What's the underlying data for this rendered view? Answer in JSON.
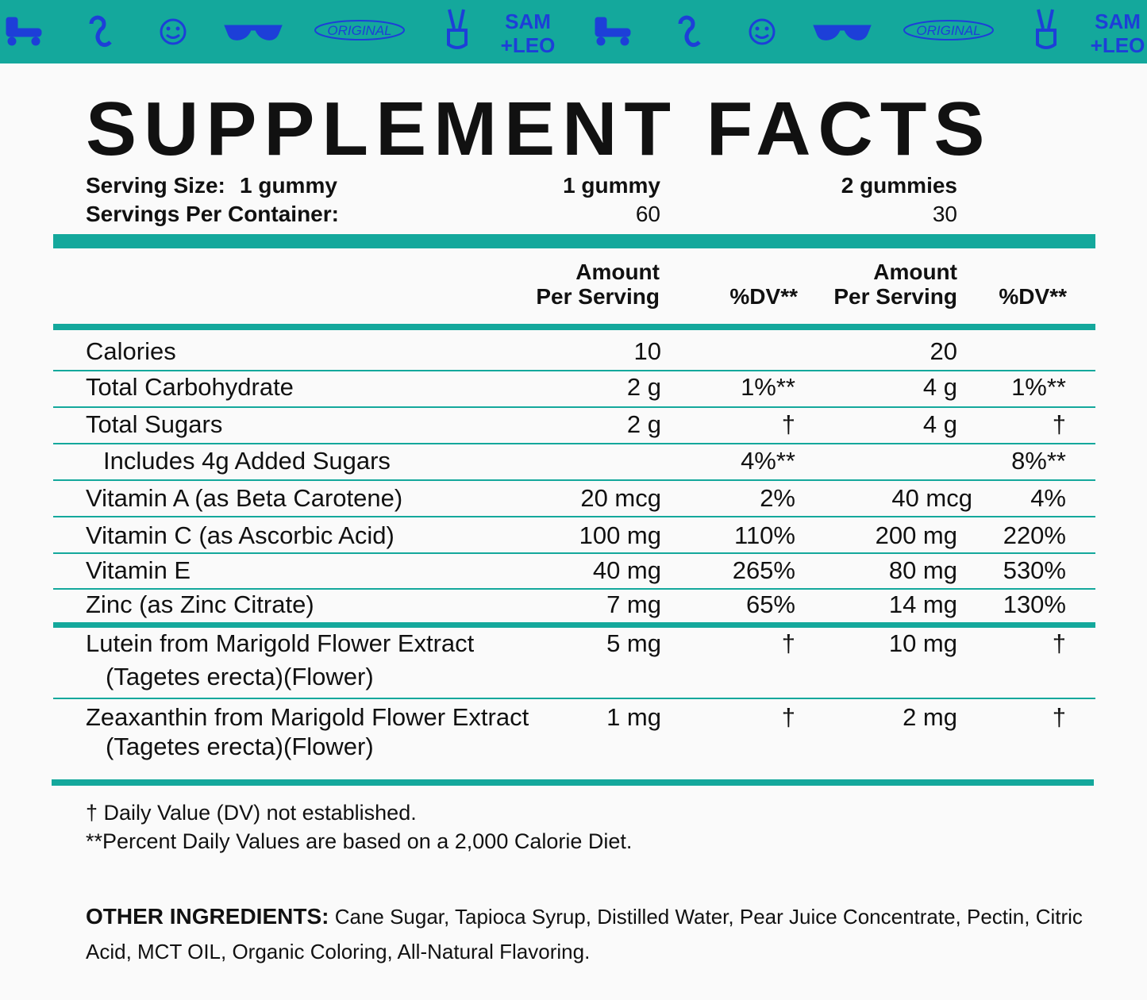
{
  "banner": {
    "original": "ORIGINAL",
    "brand": [
      "SAM",
      "+LEO"
    ]
  },
  "title": "SUPPLEMENT FACTS",
  "serving": {
    "size_label": "Serving Size:",
    "size_value": "1 gummy",
    "per_container_label": "Servings Per Container:",
    "columns": [
      [
        "1 gummy",
        "60"
      ],
      [
        "2 gummies",
        "30"
      ]
    ]
  },
  "table": {
    "headers": [
      [
        "Amount",
        "Per Serving"
      ],
      "%DV**",
      [
        "Amount",
        "Per Serving"
      ],
      "%DV**"
    ],
    "rows": [
      {
        "name": [
          "Calories"
        ],
        "amount1": "10",
        "dv1": null,
        "amount2": "20",
        "dv2": null
      },
      {
        "name": [
          "Total Carbohydrate"
        ],
        "amount1": "2 g",
        "dv1": "1%**",
        "amount2": "4 g",
        "dv2": "1%**"
      },
      {
        "name": [
          "Total Sugars"
        ],
        "amount1": "2 g",
        "dv1": "†",
        "amount2": "4 g",
        "dv2": "†"
      },
      {
        "name": [
          "Includes 4g Added Sugars"
        ],
        "amount1": null,
        "dv1": "4%**",
        "amount2": null,
        "dv2": "8%**"
      },
      {
        "name": [
          "Vitamin A (as Beta Carotene)"
        ],
        "amount1": "20 mcg",
        "dv1": "2%",
        "amount2": "40 mcg",
        "dv2": "4%"
      },
      {
        "name": [
          "Vitamin C (as Ascorbic Acid)"
        ],
        "amount1": "100 mg",
        "dv1": "110%",
        "amount2": "200 mg",
        "dv2": "220%"
      },
      {
        "name": [
          "Vitamin E"
        ],
        "amount1": "40 mg",
        "dv1": "265%",
        "amount2": "80 mg",
        "dv2": "530%"
      },
      {
        "name": [
          "Zinc (as Zinc Citrate)"
        ],
        "amount1": "7 mg",
        "dv1": "65%",
        "amount2": "14 mg",
        "dv2": "130%"
      },
      {
        "name": [
          "Lutein from Marigold Flower Extract",
          "(Tagetes erecta)(Flower)"
        ],
        "amount1": "5 mg",
        "dv1": "†",
        "amount2": "10 mg",
        "dv2": "†"
      },
      {
        "name": [
          "Zeaxanthin from Marigold Flower Extract",
          "(Tagetes erecta)(Flower)"
        ],
        "amount1": "1 mg",
        "dv1": "†",
        "amount2": "2 mg",
        "dv2": "†"
      }
    ]
  },
  "footnotes": [
    "† Daily Value (DV) not established.",
    "**Percent Daily Values are based on a 2,000 Calorie Diet."
  ],
  "other_ingredients": {
    "label": "OTHER INGREDIENTS:",
    "text": "Cane Sugar, Tapioca Syrup, Distilled Water, Pear Juice Concentrate, Pectin, Citric Acid, MCT OIL, Organic Coloring, All-Natural Flavoring."
  }
}
